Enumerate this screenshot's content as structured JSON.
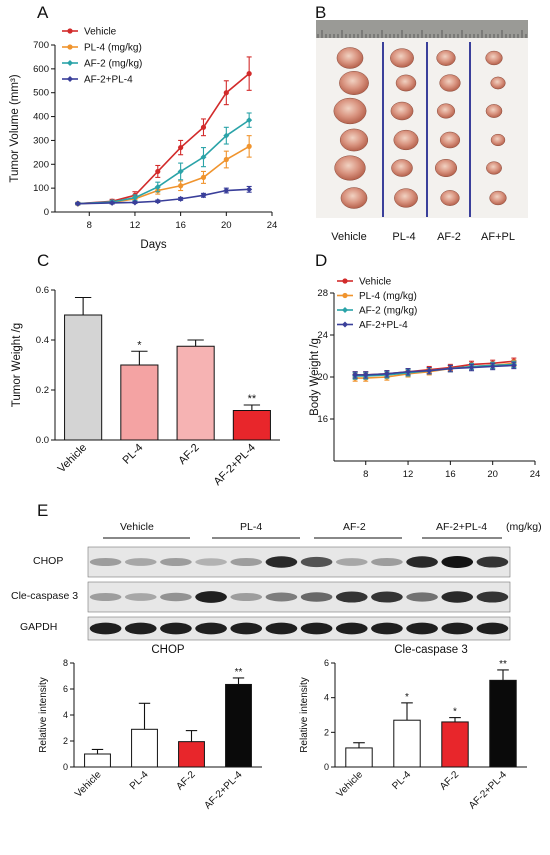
{
  "colors": {
    "vehicle": "#d22b2b",
    "pl4": "#f0942e",
    "af2": "#2aa3a8",
    "combo": "#3a3f9a",
    "bar_vehicle": "#d4d4d4",
    "bar_pl4": "#f4a3a3",
    "bar_af2": "#f6b3b3",
    "bar_combo": "#e8262b",
    "blot_bar_vehicle": "#ffffff",
    "blot_bar_pl4": "#ffffff",
    "blot_bar_af2": "#e8262b",
    "blot_bar_combo": "#0a0a0a"
  },
  "panels": {
    "a": "A",
    "b": "B",
    "c": "C",
    "d": "D",
    "e": "E"
  },
  "chart_data": [
    {
      "id": "A",
      "type": "line",
      "ylabel": "Tumor Volume (mm³)",
      "xlabel": "Days",
      "xlim": [
        5,
        24
      ],
      "ylim": [
        0,
        700
      ],
      "xticks": [
        8,
        12,
        16,
        20,
        24
      ],
      "yticks": [
        0,
        100,
        200,
        300,
        400,
        500,
        600,
        700
      ],
      "x": [
        7,
        10,
        12,
        14,
        16,
        18,
        20,
        22
      ],
      "legend": "top-left",
      "series": [
        {
          "name": "Vehicle",
          "color": "vehicle",
          "values": [
            35,
            45,
            70,
            170,
            270,
            355,
            500,
            580
          ],
          "err": [
            5,
            8,
            15,
            25,
            30,
            35,
            50,
            70
          ]
        },
        {
          "name": "PL-4 (mg/kg)",
          "color": "pl4",
          "values": [
            35,
            40,
            55,
            90,
            110,
            145,
            220,
            275
          ],
          "err": [
            5,
            6,
            10,
            15,
            20,
            25,
            35,
            45
          ]
        },
        {
          "name": "AF-2 (mg/kg)",
          "color": "af2",
          "values": [
            35,
            42,
            60,
            105,
            170,
            230,
            320,
            385
          ],
          "err": [
            5,
            7,
            12,
            20,
            35,
            40,
            35,
            30
          ]
        },
        {
          "name": "AF-2+PL-4",
          "color": "combo",
          "values": [
            35,
            38,
            40,
            45,
            55,
            70,
            90,
            95
          ],
          "err": [
            3,
            4,
            4,
            5,
            6,
            8,
            10,
            12
          ]
        }
      ]
    },
    {
      "id": "C",
      "type": "bar",
      "ylabel": "Tumor Weight /g",
      "ylim": [
        0,
        0.6
      ],
      "yticks": [
        "0.0",
        "0.2",
        "0.4",
        "0.6"
      ],
      "categories": [
        "Vehicle",
        "PL-4",
        "AF-2",
        "AF-2+PL-4"
      ],
      "values": [
        0.5,
        0.3,
        0.375,
        0.118
      ],
      "err": [
        0.07,
        0.055,
        0.025,
        0.022
      ],
      "significance": [
        "",
        "*",
        "",
        "**"
      ],
      "bar_colors": [
        "bar_vehicle",
        "bar_pl4",
        "bar_af2",
        "bar_combo"
      ]
    },
    {
      "id": "D",
      "type": "line",
      "ylabel": "Body Weight /g",
      "xlim": [
        5,
        24
      ],
      "ylim": [
        12,
        28
      ],
      "xticks": [
        8,
        12,
        16,
        20,
        24
      ],
      "yticks": [
        16,
        20,
        24,
        28
      ],
      "x": [
        7,
        8,
        10,
        12,
        14,
        16,
        18,
        20,
        22
      ],
      "legend": "top-left",
      "series": [
        {
          "name": "Vehicle",
          "color": "vehicle",
          "values": [
            20.2,
            20.2,
            20.3,
            20.5,
            20.7,
            20.9,
            21.2,
            21.3,
            21.5
          ],
          "err": [
            0.3,
            0.3,
            0.3,
            0.3,
            0.3,
            0.3,
            0.3,
            0.3,
            0.3
          ]
        },
        {
          "name": "PL-4 (mg/kg)",
          "color": "pl4",
          "values": [
            19.9,
            19.9,
            20.0,
            20.3,
            20.5,
            20.8,
            21.0,
            21.1,
            21.3
          ],
          "err": [
            0.3,
            0.3,
            0.3,
            0.3,
            0.3,
            0.3,
            0.3,
            0.3,
            0.3
          ]
        },
        {
          "name": "AF-2 (mg/kg)",
          "color": "af2",
          "values": [
            20.1,
            20.1,
            20.2,
            20.4,
            20.6,
            20.8,
            21.0,
            21.1,
            21.2
          ],
          "err": [
            0.3,
            0.3,
            0.3,
            0.3,
            0.3,
            0.3,
            0.3,
            0.3,
            0.3
          ]
        },
        {
          "name": "AF-2+PL-4",
          "color": "combo",
          "values": [
            20.2,
            20.2,
            20.3,
            20.5,
            20.6,
            20.8,
            20.9,
            21.0,
            21.1
          ],
          "err": [
            0.3,
            0.3,
            0.3,
            0.3,
            0.3,
            0.3,
            0.3,
            0.3,
            0.3
          ]
        }
      ]
    },
    {
      "id": "E-CHOP",
      "type": "bar",
      "title": "CHOP",
      "ylabel": "Relative intensity",
      "ylim": [
        0,
        8
      ],
      "yticks": [
        0,
        2,
        4,
        6,
        8
      ],
      "categories": [
        "Vehicle",
        "PL-4",
        "AF-2",
        "AF-2+PL-4"
      ],
      "values": [
        1.0,
        2.9,
        1.95,
        6.35
      ],
      "err": [
        0.35,
        2.0,
        0.85,
        0.5
      ],
      "significance": [
        "",
        "",
        "",
        "**"
      ],
      "bar_colors": [
        "blot_bar_vehicle",
        "blot_bar_pl4",
        "blot_bar_af2",
        "blot_bar_combo"
      ]
    },
    {
      "id": "E-Cle-caspase3",
      "type": "bar",
      "title": "Cle-caspase 3",
      "ylabel": "Relative intensity",
      "ylim": [
        0,
        6
      ],
      "yticks": [
        0,
        2,
        4,
        6
      ],
      "categories": [
        "Vehicle",
        "PL-4",
        "AF-2",
        "AF-2+PL-4"
      ],
      "values": [
        1.1,
        2.7,
        2.6,
        5.0
      ],
      "err": [
        0.3,
        1.0,
        0.25,
        0.6
      ],
      "significance": [
        "",
        "*",
        "*",
        "**"
      ],
      "bar_colors": [
        "blot_bar_vehicle",
        "blot_bar_pl4",
        "blot_bar_af2",
        "blot_bar_combo"
      ]
    }
  ],
  "photo": {
    "labels": [
      "Vehicle",
      "PL-4",
      "AF-2",
      "AF+PL"
    ]
  },
  "blot": {
    "groups": [
      "Vehicle",
      "PL-4",
      "AF-2",
      "AF-2+PL-4"
    ],
    "unit": "(mg/kg)",
    "rows": [
      {
        "label": "CHOP",
        "intensity": [
          0.35,
          0.3,
          0.35,
          0.25,
          0.35,
          0.9,
          0.7,
          0.3,
          0.35,
          0.9,
          1.0,
          0.85
        ]
      },
      {
        "label": "Cle-caspase 3",
        "intensity": [
          0.35,
          0.3,
          0.4,
          0.95,
          0.35,
          0.5,
          0.6,
          0.85,
          0.85,
          0.55,
          0.9,
          0.85
        ]
      },
      {
        "label": "GAPDH",
        "intensity": [
          0.95,
          0.95,
          0.95,
          0.95,
          0.95,
          0.95,
          0.95,
          0.95,
          0.95,
          0.95,
          0.95,
          0.95
        ]
      }
    ]
  }
}
